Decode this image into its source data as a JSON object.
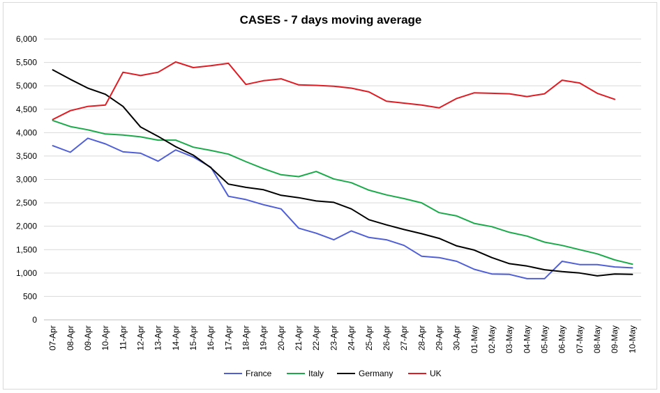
{
  "chart_data": {
    "type": "line",
    "title": "CASES - 7 days moving average",
    "xlabel": "",
    "ylabel": "",
    "ylim": [
      0,
      6000
    ],
    "yticks": [
      0,
      500,
      1000,
      1500,
      2000,
      2500,
      3000,
      3500,
      4000,
      4500,
      5000,
      5500,
      6000
    ],
    "ytick_labels": [
      "0",
      "500",
      "1,000",
      "1,500",
      "2,000",
      "2,500",
      "3,000",
      "3,500",
      "4,000",
      "4,500",
      "5,000",
      "5,500",
      "6,000"
    ],
    "grid": true,
    "legend_position": "bottom",
    "categories": [
      "07-Apr",
      "08-Apr",
      "09-Apr",
      "10-Apr",
      "11-Apr",
      "12-Apr",
      "13-Apr",
      "14-Apr",
      "15-Apr",
      "16-Apr",
      "17-Apr",
      "18-Apr",
      "19-Apr",
      "20-Apr",
      "21-Apr",
      "22-Apr",
      "23-Apr",
      "24-Apr",
      "25-Apr",
      "26-Apr",
      "27-Apr",
      "28-Apr",
      "29-Apr",
      "30-Apr",
      "01-May",
      "02-May",
      "03-May",
      "04-May",
      "05-May",
      "06-May",
      "07-May",
      "08-May",
      "09-May",
      "10-May"
    ],
    "series": [
      {
        "name": "France",
        "color": "#4f5fd8",
        "values": [
          3720,
          3580,
          3880,
          3760,
          3590,
          3560,
          3390,
          3630,
          3480,
          3260,
          2640,
          2570,
          2460,
          2370,
          1960,
          1850,
          1710,
          1900,
          1760,
          1710,
          1590,
          1360,
          1330,
          1250,
          1080,
          980,
          970,
          880,
          880,
          1250,
          1180,
          1180,
          1130,
          1110
        ]
      },
      {
        "name": "Italy",
        "color": "#1aaa4a",
        "values": [
          4260,
          4130,
          4060,
          3970,
          3950,
          3910,
          3840,
          3840,
          3690,
          3620,
          3540,
          3380,
          3230,
          3100,
          3060,
          3170,
          3010,
          2930,
          2770,
          2670,
          2590,
          2500,
          2290,
          2220,
          2060,
          1990,
          1870,
          1790,
          1660,
          1590,
          1500,
          1410,
          1280,
          1190
        ]
      },
      {
        "name": "Germany",
        "color": "#000000",
        "values": [
          5340,
          5140,
          4950,
          4820,
          4560,
          4120,
          3920,
          3700,
          3520,
          3250,
          2900,
          2830,
          2780,
          2660,
          2610,
          2540,
          2510,
          2370,
          2140,
          2030,
          1930,
          1840,
          1740,
          1580,
          1490,
          1330,
          1200,
          1150,
          1070,
          1030,
          1000,
          940,
          980,
          970
        ]
      },
      {
        "name": "UK",
        "color": "#e01b22",
        "values": [
          4280,
          4470,
          4560,
          4590,
          5290,
          5220,
          5290,
          5510,
          5390,
          5430,
          5480,
          5030,
          5110,
          5150,
          5020,
          5010,
          4990,
          4950,
          4870,
          4670,
          4630,
          4590,
          4530,
          4730,
          4850,
          4840,
          4830,
          4770,
          4830,
          5120,
          5060,
          4840,
          4710,
          null
        ]
      }
    ]
  }
}
